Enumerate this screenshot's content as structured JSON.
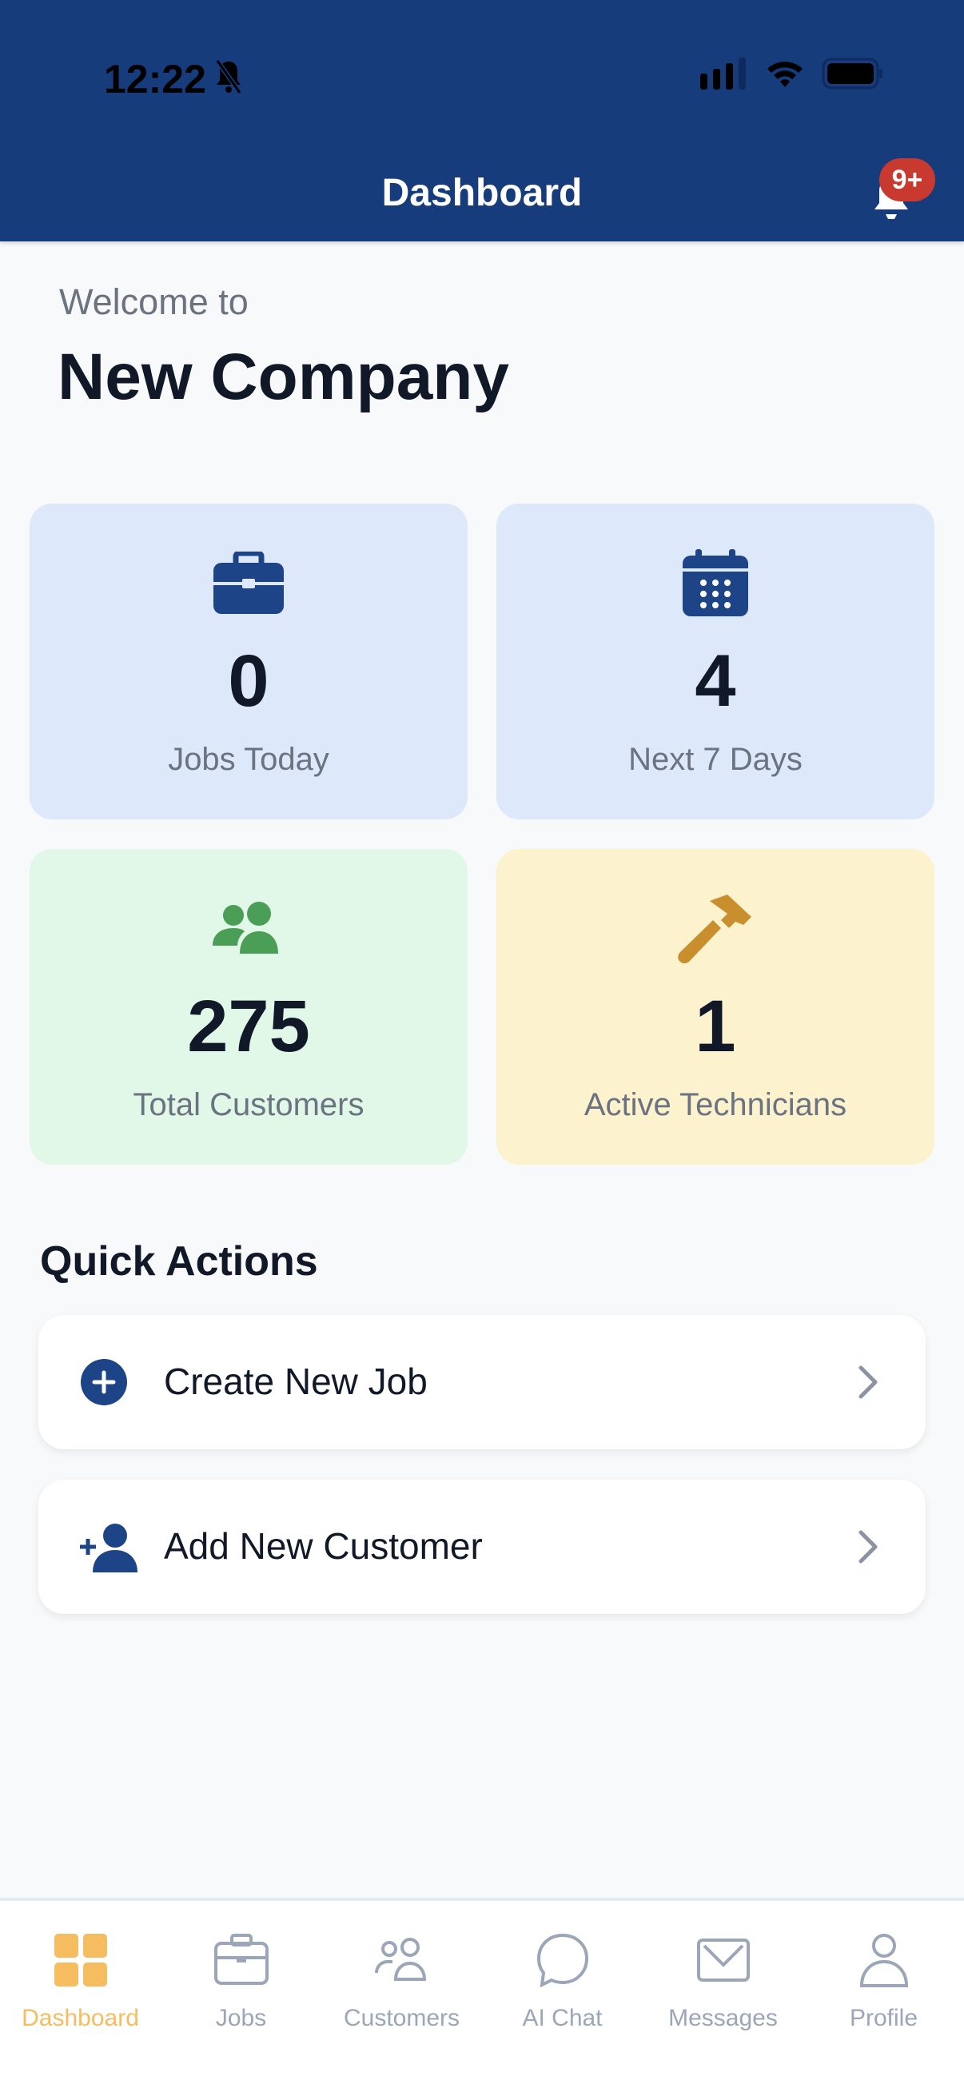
{
  "status_bar": {
    "time": "12:22"
  },
  "header": {
    "title": "Dashboard",
    "notification_badge": "9+"
  },
  "welcome": {
    "greeting": "Welcome to",
    "company": "New Company"
  },
  "stats": [
    {
      "value": "0",
      "label": "Jobs Today",
      "icon": "briefcase-icon",
      "bg": "#dde8fa",
      "icon_color": "#1e4488"
    },
    {
      "value": "4",
      "label": "Next 7 Days",
      "icon": "calendar-icon",
      "bg": "#dde8fa",
      "icon_color": "#1e4488"
    },
    {
      "value": "275",
      "label": "Total Customers",
      "icon": "users-icon",
      "bg": "#e1f8e8",
      "icon_color": "#4a9e55"
    },
    {
      "value": "1",
      "label": "Active Technicians",
      "icon": "hammer-icon",
      "bg": "#fcf2cd",
      "icon_color": "#c98f2f"
    }
  ],
  "quick_actions": {
    "title": "Quick Actions",
    "items": [
      {
        "label": "Create New Job",
        "icon": "plus-circle-icon"
      },
      {
        "label": "Add New Customer",
        "icon": "user-plus-icon"
      }
    ]
  },
  "tabs": [
    {
      "label": "Dashboard",
      "active": true
    },
    {
      "label": "Jobs"
    },
    {
      "label": "Customers"
    },
    {
      "label": "AI Chat"
    },
    {
      "label": "Messages"
    },
    {
      "label": "Profile"
    }
  ],
  "colors": {
    "header": "#173c7c",
    "active_tab": "#f5bd5f",
    "inactive_tab": "#9ba6b8",
    "badge": "#c8392f"
  }
}
